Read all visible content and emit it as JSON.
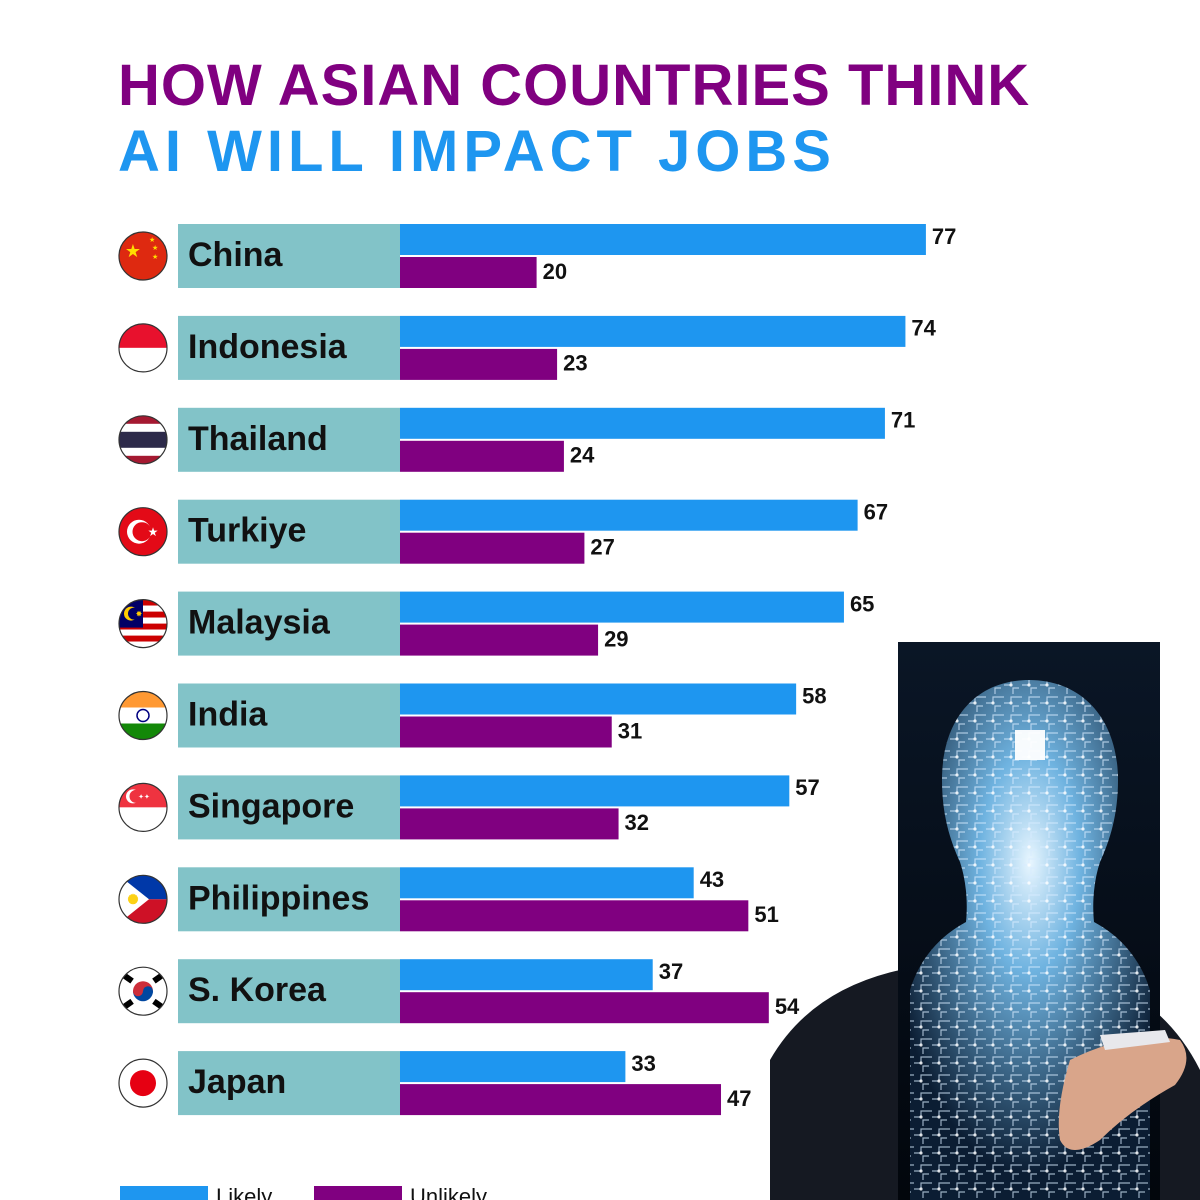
{
  "header": {
    "title_line1": "HOW ASIAN COUNTRIES THINK",
    "title_line2": "AI WILL IMPACT JOBS"
  },
  "colors": {
    "likely": "#1e96f0",
    "unlikely": "#800080",
    "label_bg": "#82c3c8",
    "title_line1": "#800080",
    "title_line2": "#1e96f0"
  },
  "chart_data": {
    "type": "bar",
    "orientation": "horizontal",
    "categories": [
      "China",
      "Indonesia",
      "Thailand",
      "Turkiye",
      "Malaysia",
      "India",
      "Singapore",
      "Philippines",
      "S. Korea",
      "Japan"
    ],
    "flags": [
      "china-flag-icon",
      "indonesia-flag-icon",
      "thailand-flag-icon",
      "turkiye-flag-icon",
      "malaysia-flag-icon",
      "india-flag-icon",
      "singapore-flag-icon",
      "philippines-flag-icon",
      "south-korea-flag-icon",
      "japan-flag-icon"
    ],
    "series": [
      {
        "name": "Likely",
        "color": "#1e96f0",
        "values": [
          77,
          74,
          71,
          67,
          65,
          58,
          57,
          43,
          37,
          33
        ]
      },
      {
        "name": "Unlikely",
        "color": "#800080",
        "values": [
          20,
          23,
          24,
          27,
          29,
          31,
          32,
          51,
          54,
          47
        ]
      }
    ],
    "data_labels": true,
    "legend": "bottom-left",
    "grid": false
  },
  "image": {
    "subject": "businessman holding circuit-board head illustration"
  }
}
